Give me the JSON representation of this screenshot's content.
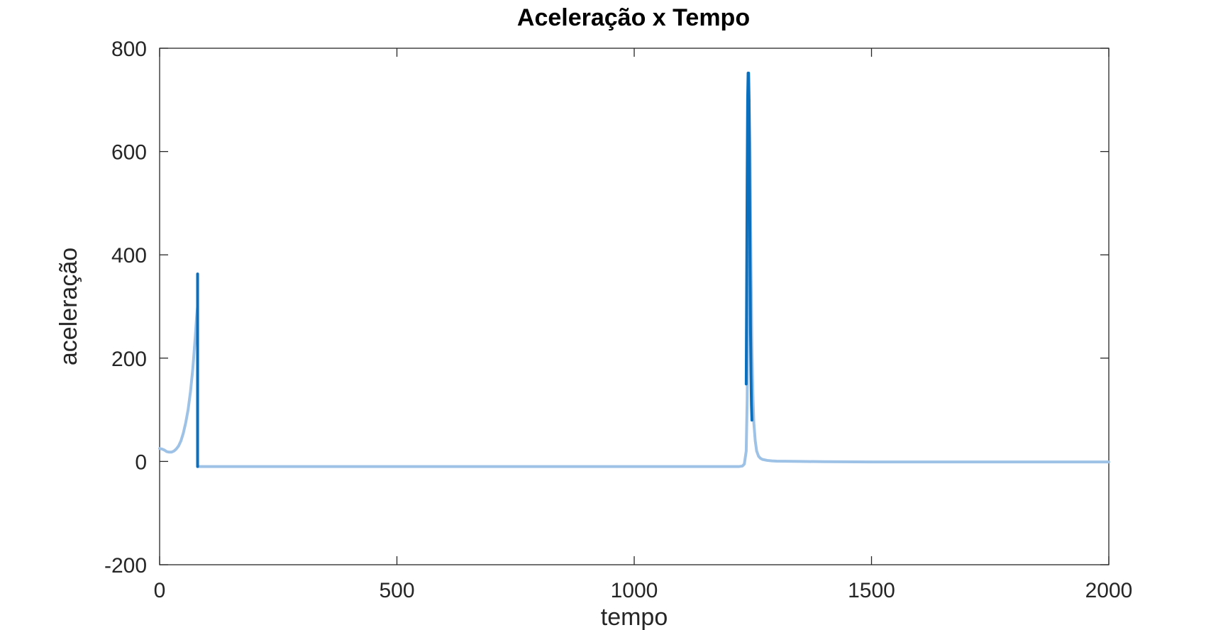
{
  "chart_data": {
    "type": "line",
    "title": "Aceleração x Tempo",
    "xlabel": "tempo",
    "ylabel": "aceleração",
    "xlim": [
      0,
      2000
    ],
    "ylim": [
      -200,
      800
    ],
    "xticks": [
      0,
      500,
      1000,
      1500,
      2000
    ],
    "yticks": [
      -200,
      0,
      200,
      400,
      600,
      800
    ],
    "grid": false,
    "colors": {
      "light": "#9ec2e6",
      "dark": "#0b6fbd",
      "axis": "#262626"
    },
    "series": [
      {
        "style": "light",
        "x": [
          0,
          5,
          10,
          15,
          20,
          25,
          30,
          35,
          40,
          45,
          50,
          55,
          60,
          65,
          70,
          75,
          78,
          80,
          80,
          100,
          200,
          400,
          600,
          800,
          1000,
          1100,
          1200,
          1220,
          1228,
          1232,
          1236,
          1238,
          1240,
          1241,
          1242,
          1244,
          1246,
          1248,
          1250,
          1252,
          1255,
          1258,
          1262,
          1266,
          1270,
          1280,
          1290,
          1300,
          1350,
          1400,
          1500,
          1600,
          1700,
          1800,
          1900,
          2000
        ],
        "y": [
          25,
          24,
          22,
          19,
          18,
          18,
          20,
          24,
          30,
          40,
          55,
          75,
          100,
          135,
          180,
          240,
          280,
          300,
          -10,
          -10,
          -10,
          -10,
          -10,
          -10,
          -10,
          -10,
          -10,
          -10,
          -9,
          -5,
          20,
          120,
          350,
          580,
          700,
          600,
          380,
          220,
          130,
          75,
          40,
          20,
          10,
          6,
          4,
          2,
          1,
          0.5,
          0,
          -0.5,
          -1,
          -1,
          -1,
          -1,
          -1,
          -1
        ]
      },
      {
        "style": "dark",
        "x": [
          80,
          80
        ],
        "y": [
          363,
          -10
        ]
      },
      {
        "style": "dark",
        "x": [
          1236,
          1237,
          1238,
          1239,
          1240,
          1241,
          1242,
          1243,
          1244,
          1245,
          1246,
          1247,
          1248
        ],
        "y": [
          150,
          350,
          550,
          700,
          752,
          752,
          700,
          560,
          400,
          260,
          170,
          110,
          80
        ]
      }
    ]
  }
}
